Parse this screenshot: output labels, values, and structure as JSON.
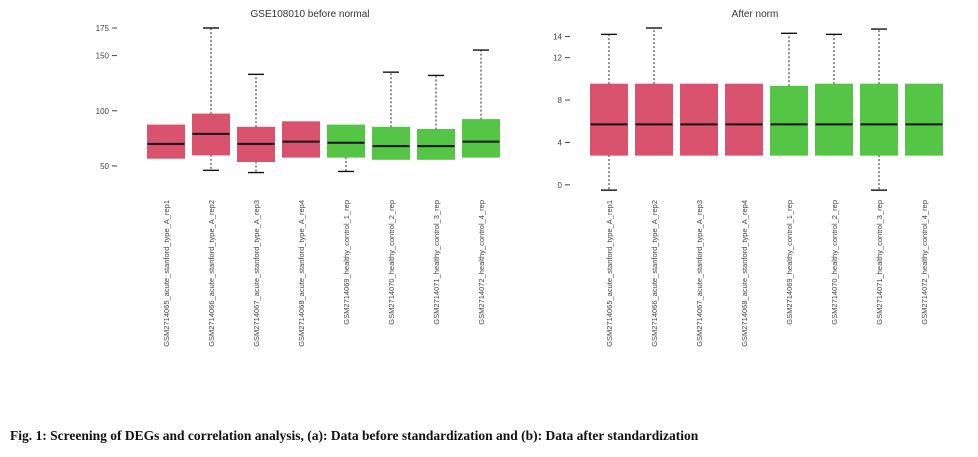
{
  "colors": {
    "case": "#d9536e",
    "control": "#55c546",
    "outline": "#111111"
  },
  "chart_data": [
    {
      "type": "boxplot",
      "title": "GSE108010 before normal",
      "ylim": [
        30,
        175
      ],
      "yticks": [
        50,
        100,
        150,
        175
      ],
      "ytick_labels": [
        "50",
        "100",
        "150",
        "175"
      ],
      "categories": [
        "GSM2714065_acute_stanford_type_A_rep1",
        "GSM2714066_acute_stanford_type_A_rep2",
        "GSM2714067_acute_stanford_type_A_rep3",
        "GSM2714068_acute_stanford_type_A_rep4",
        "GSM2714069_healthy_control_1_rep",
        "GSM2714070_healthy_control_2_rep",
        "GSM2714071_healthy_control_3_rep",
        "GSM2714072_healthy_control_4_rep"
      ],
      "groups": [
        "case",
        "case",
        "case",
        "case",
        "control",
        "control",
        "control",
        "control"
      ],
      "boxes": [
        {
          "whisker_low": null,
          "q1": 57,
          "median": 70,
          "q3": 87,
          "whisker_high": null
        },
        {
          "whisker_low": 46,
          "q1": 60,
          "median": 79,
          "q3": 97,
          "whisker_high": 175
        },
        {
          "whisker_low": 44,
          "q1": 54,
          "median": 70,
          "q3": 85,
          "whisker_high": 133
        },
        {
          "whisker_low": null,
          "q1": 58,
          "median": 72,
          "q3": 90,
          "whisker_high": null
        },
        {
          "whisker_low": 45,
          "q1": 58,
          "median": 71,
          "q3": 87,
          "whisker_high": null
        },
        {
          "whisker_low": null,
          "q1": 56,
          "median": 68,
          "q3": 85,
          "whisker_high": 135
        },
        {
          "whisker_low": null,
          "q1": 56,
          "median": 68,
          "q3": 83,
          "whisker_high": 132
        },
        {
          "whisker_low": null,
          "q1": 58,
          "median": 72,
          "q3": 92,
          "whisker_high": 155
        }
      ]
    },
    {
      "type": "boxplot",
      "title": "After norm",
      "ylim": [
        -0.3,
        14.8
      ],
      "yticks": [
        0,
        4,
        8,
        12,
        14
      ],
      "ytick_labels": [
        "0",
        "4",
        "8",
        "12",
        "14"
      ],
      "categories": [
        "GSM2714065_acute_stanford_type_A_rep1",
        "GSM2714066_acute_stanford_type_A_rep2",
        "GSM2714067_acute_stanford_type_A_rep3",
        "GSM2714068_acute_stanford_type_A_rep4",
        "GSM2714069_healthy_control_1_rep",
        "GSM2714070_healthy_control_2_rep",
        "GSM2714071_healthy_control_3_rep",
        "GSM2714072_healthy_control_4_rep"
      ],
      "groups": [
        "case",
        "case",
        "case",
        "case",
        "control",
        "control",
        "control",
        "control"
      ],
      "boxes": [
        {
          "whisker_low": -0.5,
          "q1": 2.8,
          "median": 5.7,
          "q3": 9.5,
          "whisker_high": 14.2
        },
        {
          "whisker_low": null,
          "q1": 2.8,
          "median": 5.7,
          "q3": 9.5,
          "whisker_high": 14.8
        },
        {
          "whisker_low": null,
          "q1": 2.8,
          "median": 5.7,
          "q3": 9.5,
          "whisker_high": null
        },
        {
          "whisker_low": null,
          "q1": 2.8,
          "median": 5.7,
          "q3": 9.5,
          "whisker_high": null
        },
        {
          "whisker_low": null,
          "q1": 2.8,
          "median": 5.7,
          "q3": 9.3,
          "whisker_high": 14.3
        },
        {
          "whisker_low": null,
          "q1": 2.8,
          "median": 5.7,
          "q3": 9.5,
          "whisker_high": 14.2
        },
        {
          "whisker_low": -0.5,
          "q1": 2.8,
          "median": 5.7,
          "q3": 9.5,
          "whisker_high": 14.7
        },
        {
          "whisker_low": null,
          "q1": 2.8,
          "median": 5.7,
          "q3": 9.5,
          "whisker_high": null
        }
      ]
    }
  ],
  "caption": "Fig. 1: Screening of DEGs and correlation analysis, (a): Data before standardization and (b): Data after standardization"
}
